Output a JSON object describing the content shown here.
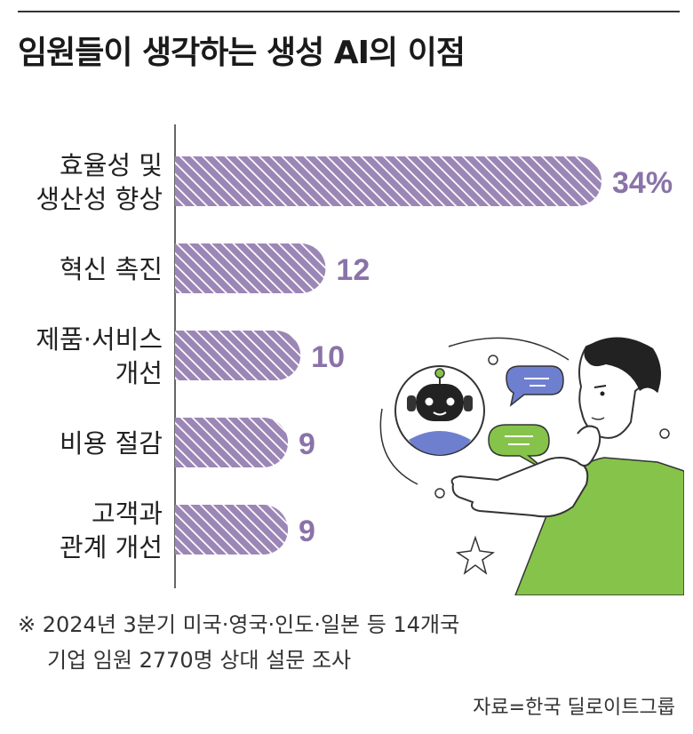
{
  "title": "임원들이 생각하는 생성 AI의 이점",
  "chart_data": {
    "type": "bar",
    "orientation": "horizontal",
    "categories": [
      [
        "효율성 및",
        "생산성 향상"
      ],
      [
        "혁신 촉진"
      ],
      [
        "제품·서비스",
        "개선"
      ],
      [
        "비용 절감"
      ],
      [
        "고객과",
        "관계 개선"
      ]
    ],
    "values": [
      34,
      12,
      10,
      9,
      9
    ],
    "value_labels": [
      "34%",
      "12",
      "10",
      "9",
      "9"
    ],
    "xlim": [
      0,
      34
    ],
    "grid": false,
    "legend": "none"
  },
  "colors": {
    "bar": "#9b86b6",
    "bar_stripe": "#ffffff",
    "value_text": "#8a73a8",
    "axis": "#333333",
    "shirt": "#86c34a",
    "bubble_blue": "#6f7fcf",
    "bubble_green": "#86c34a"
  },
  "note": {
    "line1": "※ 2024년 3분기 미국·영국·인도·일본 등 14개국",
    "line2": "기업 임원 2770명 상대 설문 조사"
  },
  "source": "자료=한국 딜로이트그룹",
  "illustration": {
    "icons": [
      "robot-icon",
      "chat-bubble-icon",
      "chat-bubble-icon",
      "thinking-man-illustration",
      "sparkle-icon"
    ]
  }
}
